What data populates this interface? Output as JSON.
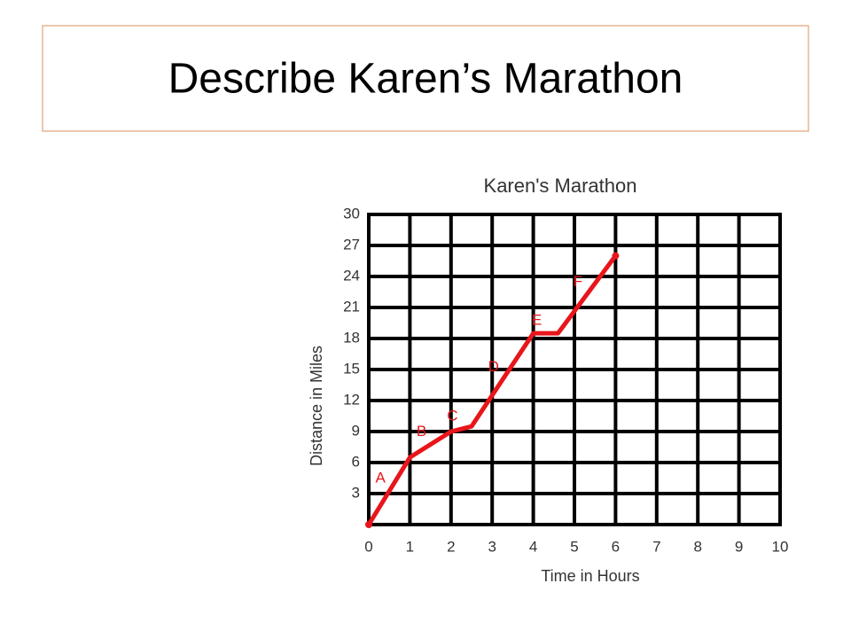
{
  "slide_title": "Describe Karen’s Marathon",
  "chart_data": {
    "type": "line",
    "title": "Karen's Marathon",
    "x_label": "Time in Hours",
    "y_label": "Distance in Miles",
    "x": [
      0,
      1,
      2,
      2.5,
      4,
      4.6,
      6
    ],
    "series": [
      {
        "color": "#e8151b",
        "values": [
          0,
          6.5,
          9,
          9.5,
          18.5,
          18.5,
          26
        ]
      }
    ],
    "annotations": [
      "A",
      "B",
      "C",
      "D",
      "E",
      "F"
    ],
    "xlim": [
      0,
      10
    ],
    "xticks": [
      0,
      1,
      2,
      3,
      4,
      5,
      6,
      7,
      8,
      9,
      10
    ],
    "ylim": [
      0,
      30
    ],
    "yticks": [
      3,
      6,
      9,
      12,
      15,
      18,
      21,
      24,
      27,
      30
    ],
    "grid": true
  }
}
